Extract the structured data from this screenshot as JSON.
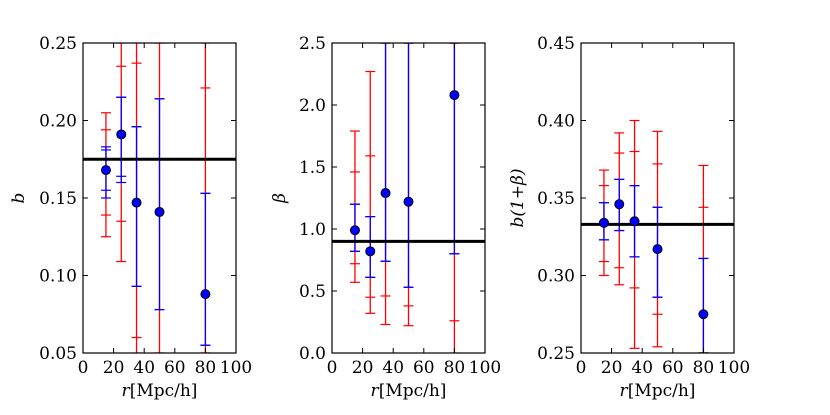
{
  "chart_data": [
    {
      "type": "scatter",
      "id": "panel-b",
      "xlabel": "r[Mpc/h]",
      "xlabel_var": "r",
      "xlabel_unit": "[Mpc/h]",
      "ylabel": "b",
      "xlim": [
        0,
        100
      ],
      "ylim": [
        0.05,
        0.25
      ],
      "xticks": [
        0,
        20,
        40,
        60,
        80,
        100
      ],
      "xtick_labels": [
        "0",
        "20",
        "40",
        "60",
        "80",
        "100"
      ],
      "yticks": [
        0.05,
        0.1,
        0.15,
        0.2,
        0.25
      ],
      "ytick_labels": [
        "0.05",
        "0.10",
        "0.15",
        "0.20",
        "0.25"
      ],
      "reference_line": 0.175,
      "points": {
        "x": [
          15,
          25,
          35,
          50,
          80
        ],
        "y": [
          0.168,
          0.191,
          0.147,
          0.141,
          0.088
        ]
      },
      "series": [
        {
          "name": "red errors",
          "color": "#ff0000",
          "x": [
            15,
            25,
            35,
            50,
            80
          ],
          "inner": [
            [
              0.139,
              0.194
            ],
            [
              0.135,
              0.235
            ],
            [
              0.06,
              0.237
            ],
            [
              0.05,
              0.25
            ],
            [
              0.05,
              0.221
            ]
          ],
          "outer": [
            [
              0.125,
              0.205
            ],
            [
              0.109,
              0.25
            ],
            [
              0.05,
              0.25
            ],
            [
              0.05,
              0.25
            ],
            [
              0.05,
              0.25
            ]
          ]
        },
        {
          "name": "blue errors",
          "color": "#0000ff",
          "x": [
            15,
            25,
            35,
            50,
            80
          ],
          "inner": [
            [
              0.155,
              0.181
            ],
            [
              0.164,
              0.215
            ],
            [
              0.093,
              0.196
            ],
            [
              0.078,
              0.214
            ],
            [
              0.055,
              0.153
            ]
          ],
          "outer": [
            [
              0.15,
              0.183
            ],
            [
              0.16,
              0.215
            ],
            [
              0.093,
              0.196
            ],
            [
              0.078,
              0.214
            ],
            [
              0.055,
              0.153
            ]
          ]
        }
      ]
    },
    {
      "type": "scatter",
      "id": "panel-beta",
      "xlabel": "r[Mpc/h]",
      "xlabel_var": "r",
      "xlabel_unit": "[Mpc/h]",
      "ylabel": "β",
      "xlim": [
        0,
        100
      ],
      "ylim": [
        0.0,
        2.5
      ],
      "xticks": [
        0,
        20,
        40,
        60,
        80,
        100
      ],
      "xtick_labels": [
        "0",
        "20",
        "40",
        "60",
        "80",
        "100"
      ],
      "yticks": [
        0.0,
        0.5,
        1.0,
        1.5,
        2.0,
        2.5
      ],
      "ytick_labels": [
        "0.0",
        "0.5",
        "1.0",
        "1.5",
        "2.0",
        "2.5"
      ],
      "reference_line": 0.9,
      "points": {
        "x": [
          15,
          25,
          35,
          50,
          80
        ],
        "y": [
          0.99,
          0.82,
          1.29,
          1.22,
          2.08
        ]
      },
      "series": [
        {
          "name": "red errors",
          "color": "#ff0000",
          "x": [
            15,
            25,
            35,
            50,
            80
          ],
          "inner": [
            [
              0.72,
              1.46
            ],
            [
              0.45,
              1.59
            ],
            [
              0.46,
              2.5
            ],
            [
              0.38,
              2.5
            ],
            [
              0.26,
              2.5
            ]
          ],
          "outer": [
            [
              0.57,
              1.79
            ],
            [
              0.32,
              2.27
            ],
            [
              0.23,
              2.5
            ],
            [
              0.22,
              2.5
            ],
            [
              0.0,
              2.5
            ]
          ]
        },
        {
          "name": "blue errors",
          "color": "#0000ff",
          "x": [
            15,
            25,
            35,
            50,
            80
          ],
          "inner": [
            [
              0.82,
              1.2
            ],
            [
              0.61,
              1.1
            ],
            [
              0.74,
              2.5
            ],
            [
              0.53,
              2.5
            ],
            [
              0.8,
              2.5
            ]
          ],
          "outer": [
            [
              0.82,
              1.2
            ],
            [
              0.61,
              1.1
            ],
            [
              0.74,
              2.5
            ],
            [
              0.53,
              2.5
            ],
            [
              0.8,
              2.5
            ]
          ]
        }
      ]
    },
    {
      "type": "scatter",
      "id": "panel-b-one-plus-beta",
      "xlabel": "r[Mpc/h]",
      "xlabel_var": "r",
      "xlabel_unit": "[Mpc/h]",
      "ylabel": "b(1+β)",
      "xlim": [
        0,
        100
      ],
      "ylim": [
        0.25,
        0.45
      ],
      "xticks": [
        0,
        20,
        40,
        60,
        80,
        100
      ],
      "xtick_labels": [
        "0",
        "20",
        "40",
        "60",
        "80",
        "100"
      ],
      "yticks": [
        0.25,
        0.3,
        0.35,
        0.4,
        0.45
      ],
      "ytick_labels": [
        "0.25",
        "0.30",
        "0.35",
        "0.40",
        "0.45"
      ],
      "reference_line": 0.333,
      "points": {
        "x": [
          15,
          25,
          35,
          50,
          80
        ],
        "y": [
          0.334,
          0.346,
          0.335,
          0.317,
          0.275
        ]
      },
      "series": [
        {
          "name": "red errors",
          "color": "#ff0000",
          "x": [
            15,
            25,
            35,
            50,
            80
          ],
          "inner": [
            [
              0.309,
              0.358
            ],
            [
              0.305,
              0.379
            ],
            [
              0.292,
              0.38
            ],
            [
              0.275,
              0.372
            ],
            [
              0.25,
              0.344
            ]
          ],
          "outer": [
            [
              0.3,
              0.368
            ],
            [
              0.294,
              0.392
            ],
            [
              0.253,
              0.4
            ],
            [
              0.254,
              0.393
            ],
            [
              0.25,
              0.371
            ]
          ]
        },
        {
          "name": "blue errors",
          "color": "#0000ff",
          "x": [
            15,
            25,
            35,
            50,
            80
          ],
          "inner": [
            [
              0.323,
              0.347
            ],
            [
              0.329,
              0.362
            ],
            [
              0.312,
              0.358
            ],
            [
              0.286,
              0.344
            ],
            [
              0.25,
              0.311
            ]
          ],
          "outer": [
            [
              0.323,
              0.347
            ],
            [
              0.329,
              0.362
            ],
            [
              0.312,
              0.358
            ],
            [
              0.286,
              0.344
            ],
            [
              0.25,
              0.311
            ]
          ]
        }
      ]
    }
  ]
}
